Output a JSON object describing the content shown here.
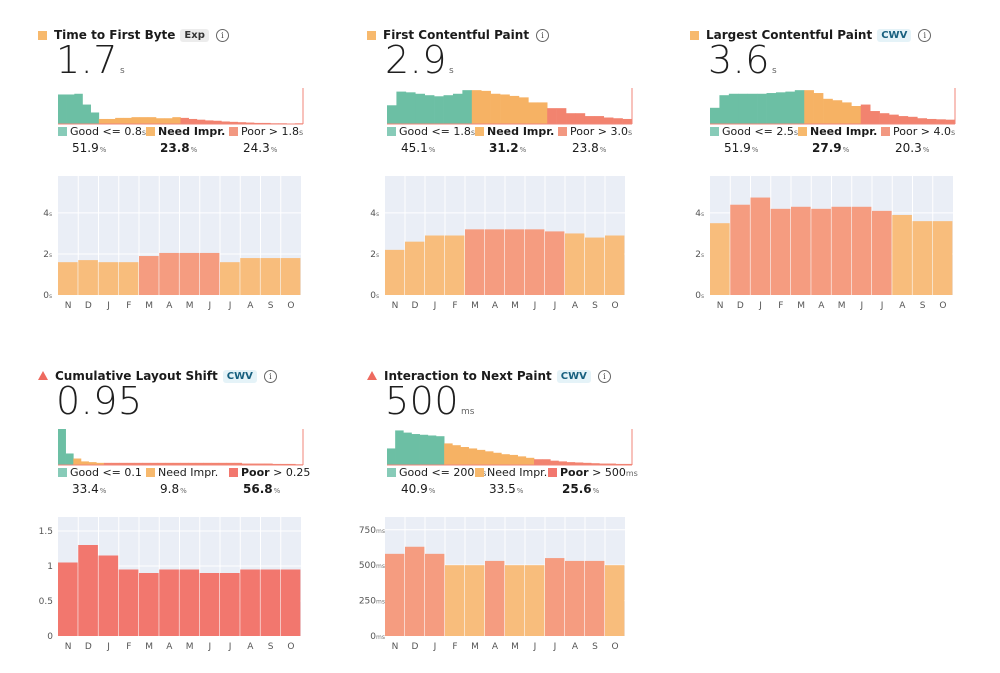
{
  "colors": {
    "good": "#87cbb8",
    "need": "#f7b96d",
    "poor": "#f29881",
    "good_dark": "#6cbfa4",
    "need_dark": "#f6b264",
    "poor_dark": "#f2836f",
    "need_month": "#f8bd7c",
    "poor_month": "#f59c80",
    "poor_bar": "#f2776e",
    "plot_bg": "#eaeef6"
  },
  "metrics": [
    {
      "id": "ttfb",
      "title": "Time to First Byte",
      "tag": "Exp",
      "tag_style": "exp",
      "status": "need",
      "value": "1.7",
      "unit": "s",
      "info": "i",
      "legend": [
        {
          "label": "Good",
          "threshold": "<= 0.8",
          "threshold_unit": "s",
          "pct": "51.9",
          "pct_unit": "%",
          "emphasized": false
        },
        {
          "label": "Need Impr.",
          "threshold": "",
          "threshold_unit": "",
          "pct": "23.8",
          "pct_unit": "%",
          "emphasized": true
        },
        {
          "label": "Poor",
          "threshold": "> 1.8",
          "threshold_unit": "s",
          "pct": "24.3",
          "pct_unit": "%",
          "emphasized": false
        }
      ],
      "distribution": {
        "good": [
          0.82,
          0.82,
          0.84,
          0.54,
          0.32
        ],
        "need": [
          0.14,
          0.14,
          0.17,
          0.17,
          0.19,
          0.19,
          0.19,
          0.16,
          0.16,
          0.19
        ],
        "poor": [
          0.17,
          0.14,
          0.12,
          0.1,
          0.09,
          0.07,
          0.06,
          0.05,
          0.04,
          0.03,
          0.03,
          0.02,
          0.02,
          0.01,
          0.02
        ]
      },
      "chart_data": {
        "type": "bar",
        "title": "Time to First Byte",
        "categories": [
          "N",
          "D",
          "J",
          "F",
          "M",
          "A",
          "M",
          "J",
          "J",
          "A",
          "S",
          "O"
        ],
        "values": [
          1.6,
          1.7,
          1.6,
          1.6,
          1.9,
          2.05,
          2.05,
          2.05,
          1.6,
          1.8,
          1.8,
          1.8
        ],
        "ylim": [
          0,
          5.8
        ],
        "yticks": [
          0,
          2,
          4
        ],
        "ytick_labels": [
          "0",
          "2",
          "4"
        ],
        "ytick_unit": "s",
        "thresholds": [
          0.8,
          1.8
        ]
      }
    },
    {
      "id": "fcp",
      "title": "First Contentful Paint",
      "tag": "",
      "tag_style": "",
      "status": "need",
      "value": "2.9",
      "unit": "s",
      "info": "i",
      "legend": [
        {
          "label": "Good",
          "threshold": "<= 1.8",
          "threshold_unit": "s",
          "pct": "45.1",
          "pct_unit": "%",
          "emphasized": false
        },
        {
          "label": "Need Impr.",
          "threshold": "",
          "threshold_unit": "",
          "pct": "31.2",
          "pct_unit": "%",
          "emphasized": true
        },
        {
          "label": "Poor",
          "threshold": "> 3.0",
          "threshold_unit": "s",
          "pct": "23.8",
          "pct_unit": "%",
          "emphasized": false
        }
      ],
      "distribution": {
        "good": [
          0.52,
          0.9,
          0.88,
          0.84,
          0.8,
          0.77,
          0.8,
          0.84,
          0.94
        ],
        "need": [
          0.94,
          0.92,
          0.84,
          0.82,
          0.78,
          0.74,
          0.6,
          0.6
        ],
        "poor": [
          0.44,
          0.44,
          0.3,
          0.3,
          0.22,
          0.22,
          0.18,
          0.16,
          0.14
        ]
      },
      "chart_data": {
        "type": "bar",
        "title": "First Contentful Paint",
        "categories": [
          "N",
          "D",
          "J",
          "F",
          "M",
          "A",
          "M",
          "J",
          "J",
          "A",
          "S",
          "O"
        ],
        "values": [
          2.2,
          2.6,
          2.9,
          2.9,
          3.2,
          3.2,
          3.2,
          3.2,
          3.1,
          3.0,
          2.8,
          2.9
        ],
        "ylim": [
          0,
          5.8
        ],
        "yticks": [
          0,
          2,
          4
        ],
        "ytick_labels": [
          "0",
          "2",
          "4"
        ],
        "ytick_unit": "s",
        "thresholds": [
          1.8,
          3.0
        ]
      }
    },
    {
      "id": "lcp",
      "title": "Largest Contentful Paint",
      "tag": "CWV",
      "tag_style": "cwv",
      "status": "need",
      "value": "3.6",
      "unit": "s",
      "info": "i",
      "legend": [
        {
          "label": "Good",
          "threshold": "<= 2.5",
          "threshold_unit": "s",
          "pct": "51.9",
          "pct_unit": "%",
          "emphasized": false
        },
        {
          "label": "Need Impr.",
          "threshold": "",
          "threshold_unit": "",
          "pct": "27.9",
          "pct_unit": "%",
          "emphasized": true
        },
        {
          "label": "Poor",
          "threshold": "> 4.0",
          "threshold_unit": "s",
          "pct": "20.3",
          "pct_unit": "%",
          "emphasized": false
        }
      ],
      "distribution": {
        "good": [
          0.45,
          0.8,
          0.84,
          0.84,
          0.84,
          0.84,
          0.86,
          0.88,
          0.9,
          0.94
        ],
        "need": [
          0.94,
          0.86,
          0.7,
          0.66,
          0.6,
          0.5
        ],
        "poor": [
          0.54,
          0.36,
          0.3,
          0.26,
          0.22,
          0.2,
          0.16,
          0.14,
          0.13,
          0.12
        ]
      },
      "chart_data": {
        "type": "bar",
        "title": "Largest Contentful Paint",
        "categories": [
          "N",
          "D",
          "J",
          "F",
          "M",
          "A",
          "M",
          "J",
          "J",
          "A",
          "S",
          "O"
        ],
        "values": [
          3.5,
          4.4,
          4.75,
          4.2,
          4.3,
          4.2,
          4.3,
          4.3,
          4.1,
          3.9,
          3.6,
          3.6
        ],
        "ylim": [
          0,
          5.8
        ],
        "yticks": [
          0,
          2,
          4
        ],
        "ytick_labels": [
          "0",
          "2",
          "4"
        ],
        "ytick_unit": "s",
        "thresholds": [
          2.5,
          4.0
        ]
      }
    },
    {
      "id": "cls",
      "title": "Cumulative Layout Shift",
      "tag": "CWV",
      "tag_style": "cwv",
      "status": "poor",
      "value": "0.95",
      "unit": "",
      "info": "i",
      "legend": [
        {
          "label": "Good",
          "threshold": "<= 0.1",
          "threshold_unit": "",
          "pct": "33.4",
          "pct_unit": "%",
          "emphasized": false
        },
        {
          "label": "Need Impr.",
          "threshold": "",
          "threshold_unit": "",
          "pct": "9.8",
          "pct_unit": "%",
          "emphasized": false
        },
        {
          "label": "Poor",
          "threshold": "> 0.25",
          "threshold_unit": "",
          "pct": "56.8",
          "pct_unit": "%",
          "emphasized": true
        }
      ],
      "distribution": {
        "good": [
          1.0,
          0.32
        ],
        "need": [
          0.18,
          0.1,
          0.08,
          0.06
        ],
        "poor": [
          0.06,
          0.06,
          0.06,
          0.06,
          0.06,
          0.06,
          0.06,
          0.06,
          0.06,
          0.06,
          0.06,
          0.06,
          0.06,
          0.06,
          0.06,
          0.06,
          0.06,
          0.06,
          0.04,
          0.04,
          0.04,
          0.04,
          0.03,
          0.03,
          0.03,
          0.02
        ]
      },
      "chart_data": {
        "type": "bar",
        "title": "Cumulative Layout Shift",
        "categories": [
          "N",
          "D",
          "J",
          "F",
          "M",
          "A",
          "M",
          "J",
          "J",
          "A",
          "S",
          "O"
        ],
        "values": [
          1.05,
          1.3,
          1.15,
          0.95,
          0.9,
          0.95,
          0.95,
          0.9,
          0.9,
          0.95,
          0.95,
          0.95
        ],
        "ylim": [
          0,
          1.7
        ],
        "yticks": [
          0,
          0.5,
          1,
          1.5
        ],
        "ytick_labels": [
          "0",
          "0.5",
          "1",
          "1.5"
        ],
        "ytick_unit": "",
        "thresholds": [
          0.1,
          0.25
        ]
      }
    },
    {
      "id": "inp",
      "title": "Interaction to Next Paint",
      "tag": "CWV",
      "tag_style": "cwv",
      "status": "poor",
      "value": "500",
      "unit": "ms",
      "info": "i",
      "legend": [
        {
          "label": "Good",
          "threshold": "<= 200",
          "threshold_unit": "ms",
          "pct": "40.9",
          "pct_unit": "%",
          "emphasized": false
        },
        {
          "label": "Need Impr.",
          "threshold": "",
          "threshold_unit": "",
          "pct": "33.5",
          "pct_unit": "%",
          "emphasized": false
        },
        {
          "label": "Poor",
          "threshold": "> 500",
          "threshold_unit": "ms",
          "pct": "25.6",
          "pct_unit": "%",
          "emphasized": true
        }
      ],
      "distribution": {
        "good": [
          0.46,
          0.96,
          0.9,
          0.86,
          0.84,
          0.82,
          0.8
        ],
        "need": [
          0.6,
          0.55,
          0.5,
          0.46,
          0.42,
          0.38,
          0.34,
          0.3,
          0.28,
          0.24,
          0.2
        ],
        "poor": [
          0.16,
          0.16,
          0.12,
          0.1,
          0.08,
          0.07,
          0.06,
          0.05,
          0.04,
          0.04,
          0.03,
          0.03
        ]
      },
      "chart_data": {
        "type": "bar",
        "title": "Interaction to Next Paint",
        "categories": [
          "N",
          "D",
          "J",
          "F",
          "M",
          "A",
          "M",
          "J",
          "J",
          "A",
          "S",
          "O"
        ],
        "values": [
          580,
          630,
          580,
          500,
          500,
          530,
          500,
          500,
          550,
          530,
          530,
          500
        ],
        "ylim": [
          0,
          840
        ],
        "yticks": [
          0,
          250,
          500,
          750
        ],
        "ytick_labels": [
          "0",
          "250",
          "500",
          "750"
        ],
        "ytick_unit": "ms",
        "thresholds": [
          200,
          500
        ]
      }
    }
  ]
}
